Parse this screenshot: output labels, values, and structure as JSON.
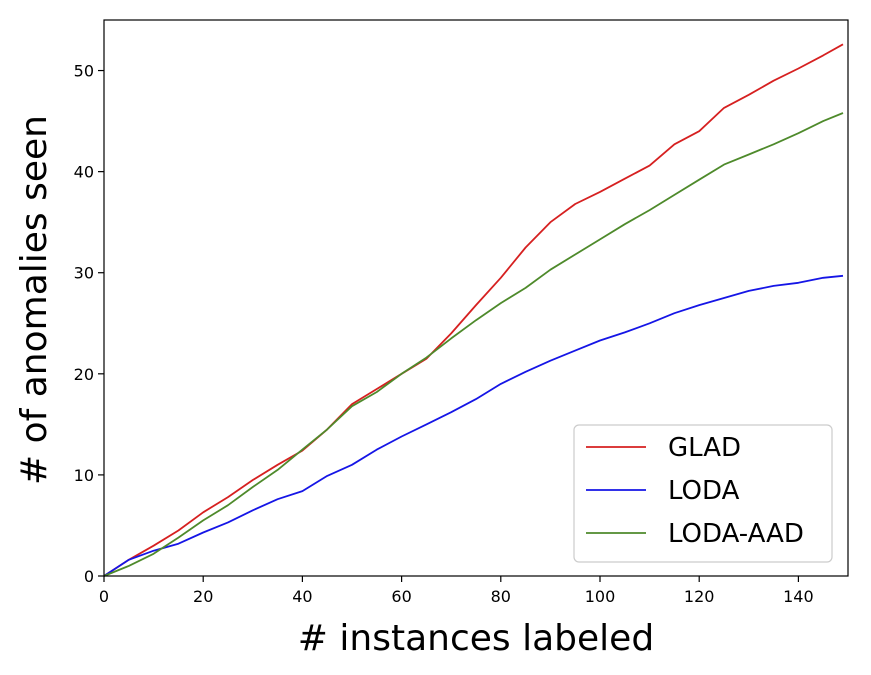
{
  "chart_data": {
    "type": "line",
    "title": "",
    "xlabel": "# instances labeled",
    "ylabel": "# of anomalies seen",
    "xlim": [
      0,
      150
    ],
    "ylim": [
      0,
      55
    ],
    "xticks": [
      0,
      20,
      40,
      60,
      80,
      100,
      120,
      140
    ],
    "yticks": [
      0,
      10,
      20,
      30,
      40,
      50
    ],
    "grid": false,
    "legend_position": "lower-right",
    "series": [
      {
        "name": "GLAD",
        "color": "#d62020",
        "x": [
          0,
          5,
          10,
          15,
          20,
          25,
          30,
          35,
          40,
          45,
          50,
          55,
          60,
          65,
          70,
          75,
          80,
          85,
          90,
          95,
          100,
          105,
          110,
          115,
          120,
          125,
          130,
          135,
          140,
          145,
          149
        ],
        "y": [
          0,
          1.6,
          3.0,
          4.5,
          6.3,
          7.8,
          9.5,
          11.0,
          12.4,
          14.5,
          17.0,
          18.5,
          20.0,
          21.5,
          24.0,
          26.8,
          29.5,
          32.5,
          35.0,
          36.8,
          38.0,
          39.3,
          40.6,
          42.7,
          44.0,
          46.3,
          47.6,
          49.0,
          50.2,
          51.5,
          52.6
        ]
      },
      {
        "name": "LODA",
        "color": "#1515e6",
        "x": [
          0,
          5,
          10,
          15,
          20,
          25,
          30,
          35,
          40,
          45,
          50,
          55,
          60,
          65,
          70,
          75,
          80,
          85,
          90,
          95,
          100,
          105,
          110,
          115,
          120,
          125,
          130,
          135,
          140,
          145,
          149
        ],
        "y": [
          0,
          1.6,
          2.5,
          3.2,
          4.3,
          5.3,
          6.5,
          7.6,
          8.4,
          9.9,
          11.0,
          12.5,
          13.8,
          15.0,
          16.2,
          17.5,
          19.0,
          20.2,
          21.3,
          22.3,
          23.3,
          24.1,
          25.0,
          26.0,
          26.8,
          27.5,
          28.2,
          28.7,
          29.0,
          29.5,
          29.7
        ]
      },
      {
        "name": "LODA-AAD",
        "color": "#4e8a2b",
        "x": [
          0,
          5,
          10,
          15,
          20,
          25,
          30,
          35,
          40,
          45,
          50,
          55,
          60,
          65,
          70,
          75,
          80,
          85,
          90,
          95,
          100,
          105,
          110,
          115,
          120,
          125,
          130,
          135,
          140,
          145,
          149
        ],
        "y": [
          0,
          1.0,
          2.2,
          3.8,
          5.5,
          7.0,
          8.8,
          10.5,
          12.5,
          14.5,
          16.8,
          18.2,
          20.0,
          21.6,
          23.5,
          25.3,
          27.0,
          28.5,
          30.3,
          31.8,
          33.3,
          34.8,
          36.2,
          37.7,
          39.2,
          40.7,
          41.7,
          42.7,
          43.8,
          45.0,
          45.8
        ]
      }
    ]
  }
}
